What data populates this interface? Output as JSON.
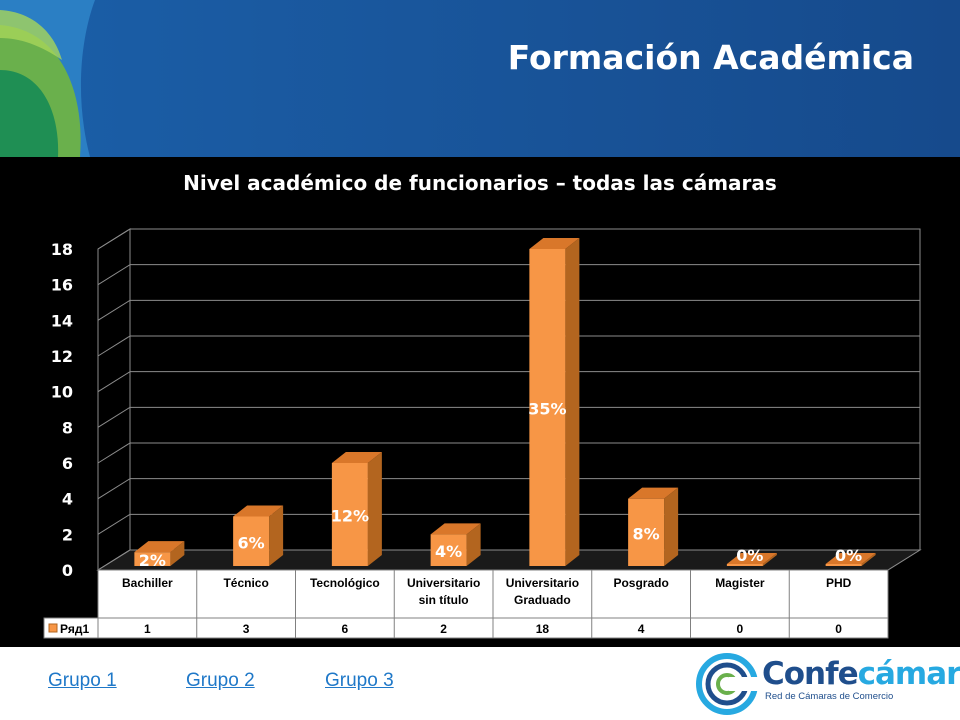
{
  "header": {
    "title": "Formación Académica"
  },
  "chart_data": {
    "type": "bar",
    "title": "Nivel académico de funcionarios – todas las cámaras",
    "categories": [
      [
        "Bachiller"
      ],
      [
        "Técnico"
      ],
      [
        "Tecnológico"
      ],
      [
        "Universitario",
        "sin título"
      ],
      [
        "Universitario",
        "Graduado"
      ],
      [
        "Posgrado"
      ],
      [
        "Magister"
      ],
      [
        "PHD"
      ]
    ],
    "series": [
      {
        "name": "Ряд1",
        "values": [
          1,
          3,
          6,
          2,
          18,
          4,
          0,
          0
        ],
        "data_labels": [
          "2%",
          "6%",
          "12%",
          "4%",
          "35%",
          "8%",
          "0%",
          "0%"
        ],
        "color": "#f79646"
      }
    ],
    "ylim": [
      0,
      18
    ],
    "y_ticks": [
      "0",
      "2",
      "4",
      "6",
      "8",
      "10",
      "12",
      "14",
      "16",
      "18"
    ],
    "grid": true,
    "data_table": true,
    "style": "3d-column"
  },
  "footer": {
    "links": [
      "Grupo 1",
      "Grupo 2",
      "Grupo 3"
    ],
    "link_color": "#1f78c8"
  },
  "logo": {
    "word_part1": "Confe",
    "word_part2": "cámaras",
    "tagline": "Red de Cámaras de Comercio",
    "color_primary": "#1f4e8c",
    "color_accent": "#27a9e1"
  }
}
